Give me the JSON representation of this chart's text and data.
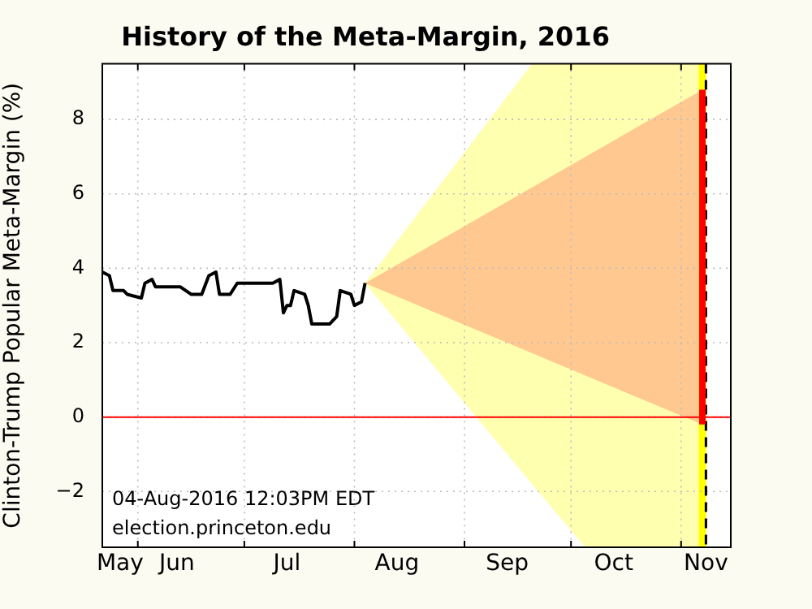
{
  "chart_data": {
    "type": "line",
    "title": "History of the Meta-Margin, 2016",
    "ylabel": "Clinton-Trump Popular Meta-Margin (%)",
    "xlim": [
      "2016-05-22",
      "2016-11-15"
    ],
    "xticks": [
      {
        "value": "2016-05-27",
        "label": "May"
      },
      {
        "value": "2016-06-12",
        "label": "Jun"
      },
      {
        "value": "2016-07-13",
        "label": "Jul"
      },
      {
        "value": "2016-08-13",
        "label": "Aug"
      },
      {
        "value": "2016-09-13",
        "label": "Sep"
      },
      {
        "value": "2016-10-13",
        "label": "Oct"
      },
      {
        "value": "2016-11-08",
        "label": "Nov"
      },
      {
        "value": "2016-06-01",
        "label": null
      },
      {
        "value": "2016-07-01",
        "label": null
      },
      {
        "value": "2016-08-01",
        "label": null
      },
      {
        "value": "2016-09-01",
        "label": null
      },
      {
        "value": "2016-10-01",
        "label": null
      },
      {
        "value": "2016-11-01",
        "label": null
      }
    ],
    "ylim": [
      -3.5,
      9.5
    ],
    "yticks": [
      {
        "value": -2,
        "label": "−2"
      },
      0,
      2,
      4,
      6,
      8
    ],
    "grid": true,
    "legend": false,
    "marker": "none",
    "line_style": "solid",
    "series": [
      {
        "type": "line",
        "color": "#ffffb0",
        "x": [
          "2016-08-04",
          "2016-09-20",
          "2016-10-05",
          "2016-11-08"
        ],
        "values": [
          null,
          null,
          null,
          null
        ],
        "lower": [
          3.6,
          -1.8,
          -3.5,
          -3.5
        ],
        "upper": [
          3.6,
          9.5,
          9.5,
          9.5
        ]
      },
      {
        "type": "line",
        "color": "#ffc890",
        "x": [
          "2016-08-04",
          "2016-11-07"
        ],
        "values": [
          null,
          null
        ],
        "lower": [
          3.6,
          -0.2
        ],
        "upper": [
          3.6,
          8.8
        ]
      },
      {
        "type": "line",
        "color": "#000000",
        "x": [
          "2016-05-22",
          "2016-05-24",
          "2016-05-25",
          "2016-05-28",
          "2016-05-29",
          "2016-06-02",
          "2016-06-03",
          "2016-06-05",
          "2016-06-06",
          "2016-06-13",
          "2016-06-16",
          "2016-06-19",
          "2016-06-21",
          "2016-06-23",
          "2016-06-24",
          "2016-06-27",
          "2016-06-29",
          "2016-07-09",
          "2016-07-11",
          "2016-07-12",
          "2016-07-13",
          "2016-07-14",
          "2016-07-15",
          "2016-07-18",
          "2016-07-19",
          "2016-07-20",
          "2016-07-25",
          "2016-07-27",
          "2016-07-28",
          "2016-07-31",
          "2016-08-01",
          "2016-08-03",
          "2016-08-04"
        ],
        "values": [
          3.9,
          3.8,
          3.4,
          3.4,
          3.3,
          3.2,
          3.6,
          3.7,
          3.5,
          3.5,
          3.3,
          3.3,
          3.8,
          3.9,
          3.3,
          3.3,
          3.6,
          3.6,
          3.7,
          2.8,
          3.0,
          3.0,
          3.4,
          3.3,
          3.0,
          2.5,
          2.5,
          2.7,
          3.4,
          3.3,
          3.0,
          3.1,
          3.6
        ]
      },
      {
        "type": "line",
        "color": "#ff0000",
        "x": [
          "2016-11-07",
          "2016-11-07"
        ],
        "values": [
          -0.2,
          8.8
        ]
      }
    ],
    "ref_lines": [
      {
        "axis": "y",
        "value": 0,
        "color": "#ff0000",
        "line_style": "solid"
      },
      {
        "axis": "x",
        "value": "2016-11-08",
        "color": "#000000",
        "line_style": "dashed"
      }
    ],
    "bands": [
      {
        "axis": "x",
        "from": "2016-11-06",
        "to": "2016-11-08",
        "color": "#ffff00"
      }
    ],
    "annotations": [
      "04-Aug-2016 12:03PM EDT",
      "election.princeton.edu"
    ]
  }
}
